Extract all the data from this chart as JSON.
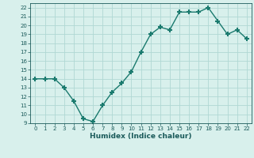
{
  "x": [
    0,
    1,
    2,
    3,
    4,
    5,
    6,
    7,
    8,
    9,
    10,
    11,
    12,
    13,
    14,
    15,
    16,
    17,
    18,
    19,
    20,
    21,
    22
  ],
  "y": [
    14,
    14,
    14,
    13,
    11.5,
    9.5,
    9.2,
    11,
    12.5,
    13.5,
    14.8,
    17,
    19,
    19.8,
    19.5,
    21.5,
    21.5,
    21.5,
    22,
    20.5,
    19,
    19.5,
    18.5
  ],
  "xlabel": "Humidex (Indice chaleur)",
  "ylim": [
    9,
    22.5
  ],
  "xlim": [
    -0.5,
    22.5
  ],
  "yticks": [
    9,
    10,
    11,
    12,
    13,
    14,
    15,
    16,
    17,
    18,
    19,
    20,
    21,
    22
  ],
  "xticks": [
    0,
    1,
    2,
    3,
    4,
    5,
    6,
    7,
    8,
    9,
    10,
    11,
    12,
    13,
    14,
    15,
    16,
    17,
    18,
    19,
    20,
    21,
    22
  ],
  "line_color": "#1a7a6e",
  "marker": "+",
  "bg_color": "#d8f0ec",
  "grid_color": "#b0d8d4",
  "text_color": "#1a5a5a"
}
